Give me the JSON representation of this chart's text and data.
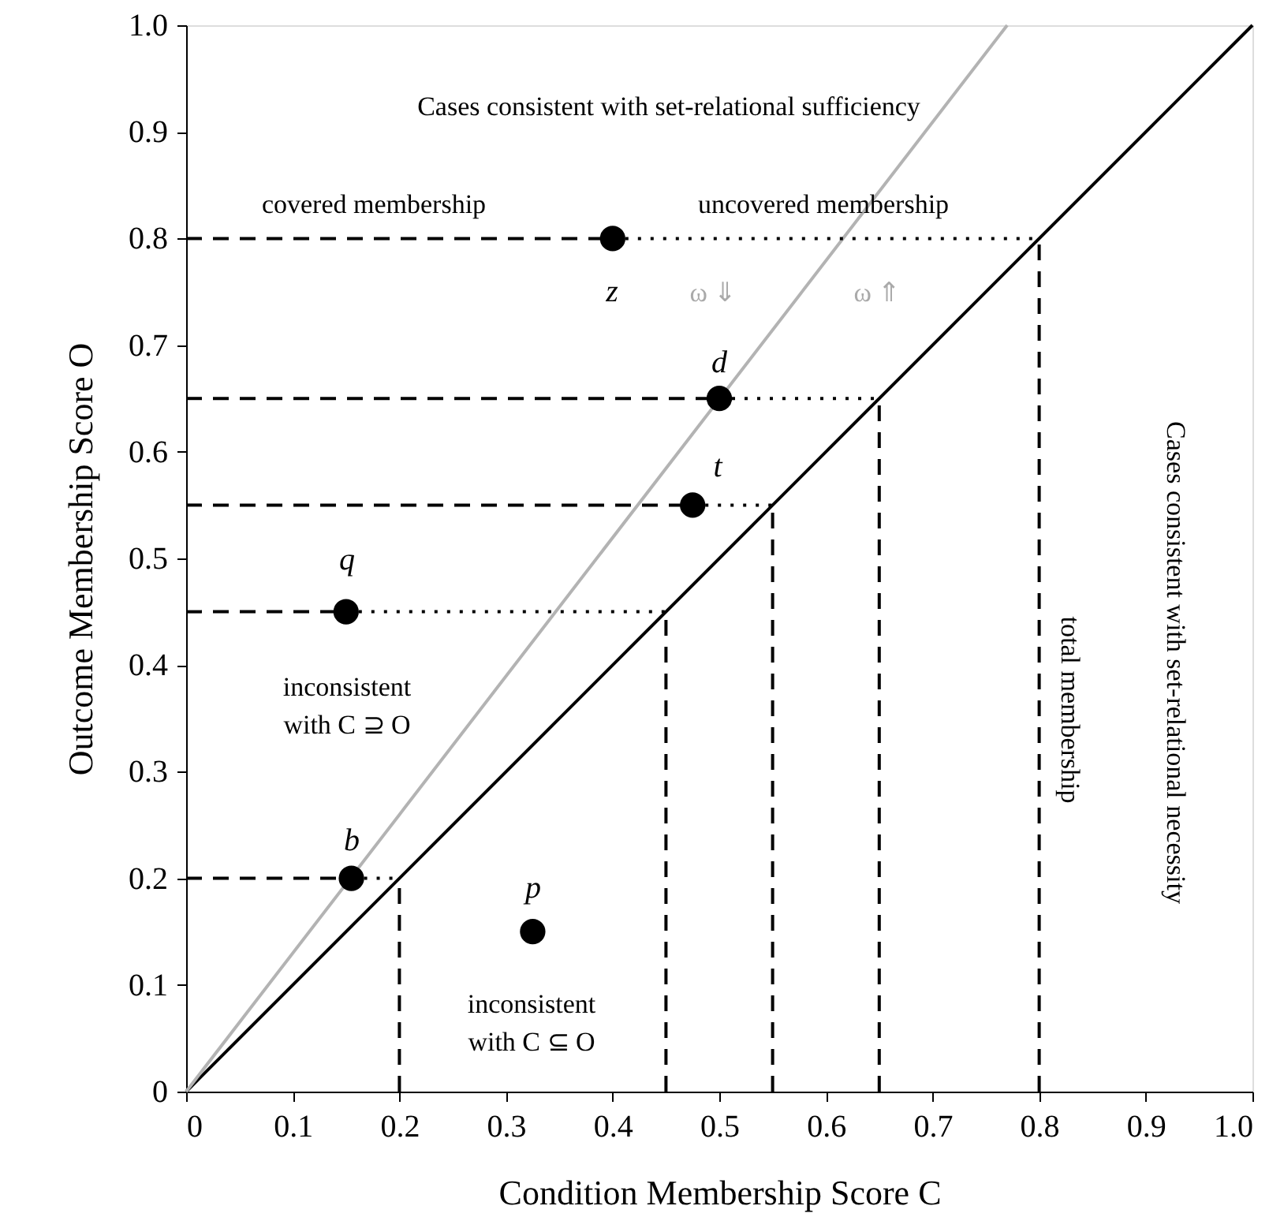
{
  "chart_data": {
    "type": "scatter",
    "xlabel": "Condition Membership Score C",
    "ylabel": "Outcome Membership Score O",
    "xlim": [
      0,
      1
    ],
    "ylim": [
      0,
      1
    ],
    "xticks": [
      0,
      0.1,
      0.2,
      0.3,
      0.4,
      0.5,
      0.6,
      0.7,
      0.8,
      0.9,
      {
        "value": 1,
        "label": "1.0"
      }
    ],
    "yticks": [
      0,
      0.1,
      0.2,
      0.3,
      0.4,
      0.5,
      0.6,
      0.7,
      0.8,
      0.9,
      {
        "value": 1,
        "label": "1.0"
      }
    ],
    "grid": false,
    "series": [
      {
        "type": "line",
        "color": "#000000",
        "line_style": "solid",
        "x": [
          0,
          1
        ],
        "values": [
          0,
          1
        ]
      },
      {
        "type": "line",
        "color": "#b3b3b3",
        "line_style": "solid",
        "x": [
          0,
          0.77
        ],
        "values": [
          0,
          1
        ]
      },
      {
        "type": "line",
        "color": "#000000",
        "line_style": "dashed",
        "x": [
          0,
          0.4
        ],
        "values": [
          0.8,
          0.8
        ]
      },
      {
        "type": "line",
        "color": "#000000",
        "line_style": "dashed",
        "x": [
          0,
          0.5
        ],
        "values": [
          0.65,
          0.65
        ]
      },
      {
        "type": "line",
        "color": "#000000",
        "line_style": "dashed",
        "x": [
          0,
          0.475
        ],
        "values": [
          0.55,
          0.55
        ]
      },
      {
        "type": "line",
        "color": "#000000",
        "line_style": "dashed",
        "x": [
          0,
          0.15
        ],
        "values": [
          0.45,
          0.45
        ]
      },
      {
        "type": "line",
        "color": "#000000",
        "line_style": "dashed",
        "x": [
          0,
          0.155
        ],
        "values": [
          0.2,
          0.2
        ]
      },
      {
        "type": "line",
        "color": "#000000",
        "line_style": "dotted",
        "x": [
          0.4,
          0.8
        ],
        "values": [
          0.8,
          0.8
        ]
      },
      {
        "type": "line",
        "color": "#000000",
        "line_style": "dotted",
        "x": [
          0.5,
          0.65
        ],
        "values": [
          0.65,
          0.65
        ]
      },
      {
        "type": "line",
        "color": "#000000",
        "line_style": "dotted",
        "x": [
          0.475,
          0.55
        ],
        "values": [
          0.55,
          0.55
        ]
      },
      {
        "type": "line",
        "color": "#000000",
        "line_style": "dotted",
        "x": [
          0.15,
          0.45
        ],
        "values": [
          0.45,
          0.45
        ]
      },
      {
        "type": "line",
        "color": "#000000",
        "line_style": "dotted",
        "x": [
          0.155,
          0.2
        ],
        "values": [
          0.2,
          0.2
        ]
      },
      {
        "type": "line",
        "color": "#000000",
        "line_style": "dashed",
        "x": [
          0.2,
          0.2
        ],
        "values": [
          0,
          0.2
        ]
      },
      {
        "type": "line",
        "color": "#000000",
        "line_style": "dashed",
        "x": [
          0.45,
          0.45
        ],
        "values": [
          0,
          0.45
        ]
      },
      {
        "type": "line",
        "color": "#000000",
        "line_style": "dashed",
        "x": [
          0.55,
          0.55
        ],
        "values": [
          0,
          0.55
        ]
      },
      {
        "type": "line",
        "color": "#000000",
        "line_style": "dashed",
        "x": [
          0.65,
          0.65
        ],
        "values": [
          0,
          0.65
        ]
      },
      {
        "type": "line",
        "color": "#000000",
        "line_style": "dashed",
        "x": [
          0.8,
          0.8
        ],
        "values": [
          0,
          0.8
        ]
      },
      {
        "color": "#000000",
        "marker": "circle",
        "x": [
          0.4,
          0.5,
          0.475,
          0.15,
          0.155,
          0.325
        ],
        "values": [
          0.8,
          0.65,
          0.55,
          0.45,
          0.2,
          0.15
        ]
      }
    ],
    "annotations": [
      "Cases consistent with set-relational sufficiency",
      "Cases consistent with set-relational necessity",
      "total membership",
      "covered membership",
      "uncovered membership",
      "ω ⇓",
      "ω ⇑",
      "inconsistent\nwith C ⊇ O",
      "inconsistent\nwith C ⊆ O",
      "z",
      "d",
      "t",
      "q",
      "b",
      "p"
    ]
  }
}
